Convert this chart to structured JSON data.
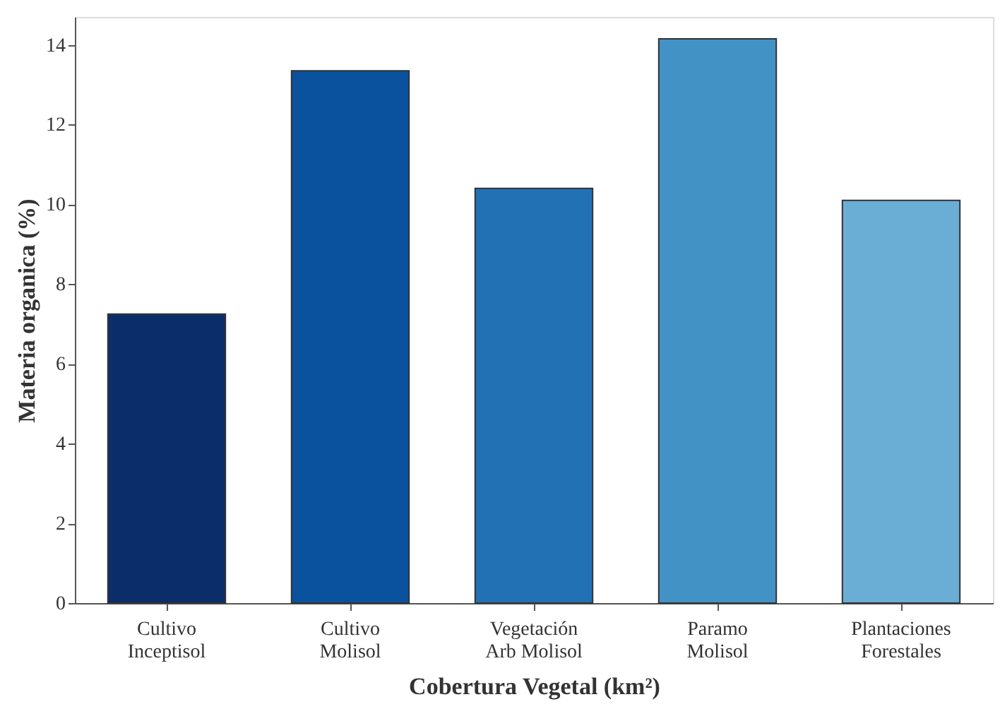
{
  "chart_data": {
    "type": "bar",
    "xlabel": "Cobertura Vegetal (km²)",
    "ylabel": "Materia organica (%)",
    "categories": [
      "Cultivo\nInceptisol",
      "Cultivo\nMolisol",
      "Vegetación\nArb Molisol",
      "Paramo\nMolisol",
      "Plantaciones\nForestales"
    ],
    "values": [
      7.25,
      13.35,
      10.4,
      14.15,
      10.1
    ],
    "colors": [
      "#0b2d69",
      "#0a529e",
      "#2271b5",
      "#4292c6",
      "#6aaed6"
    ],
    "ylim": [
      0,
      14.7
    ],
    "yticks": [
      0,
      2,
      4,
      6,
      8,
      10,
      12,
      14
    ],
    "grid": false,
    "legend": false
  }
}
